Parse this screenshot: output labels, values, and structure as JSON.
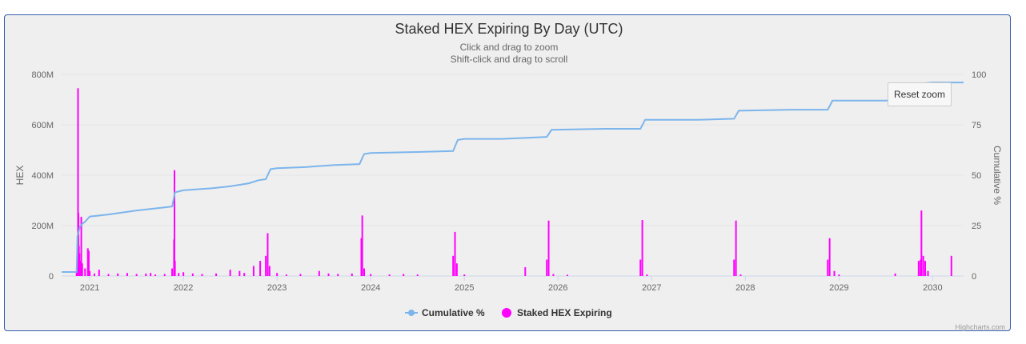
{
  "title": "Staked HEX Expiring By Day (UTC)",
  "subtitle_lines": [
    "Click and drag to zoom",
    "Shift-click and drag to scroll"
  ],
  "reset_zoom_label": "Reset zoom",
  "credits": "Highcharts.com",
  "colors": {
    "cumulative": "#7cb5ec",
    "staked": "#ff00ff",
    "border": "#335cad",
    "background": "#efefef"
  },
  "chart_data": {
    "type": "bar",
    "title": "Staked HEX Expiring By Day (UTC)",
    "xlabel": "",
    "x_ticks": [
      "2021",
      "2022",
      "2023",
      "2024",
      "2025",
      "2026",
      "2027",
      "2028",
      "2029",
      "2030"
    ],
    "xlim": [
      2020.7,
      2030.33
    ],
    "y_left": {
      "title": "HEX",
      "ticks": [
        "0",
        "200M",
        "400M",
        "600M",
        "800M"
      ],
      "ylim": [
        0,
        800000000
      ]
    },
    "y_right": {
      "title": "Cumulative %",
      "ticks": [
        "0",
        "25",
        "50",
        "75",
        "100"
      ],
      "ylim": [
        0,
        100
      ]
    },
    "grid": true,
    "legend": {
      "placement": "bottom-center",
      "entries": [
        "Cumulative %",
        "Staked HEX Expiring"
      ]
    },
    "series": [
      {
        "name": "Staked HEX Expiring",
        "axis": "left",
        "kind": "column",
        "points": [
          [
            2020.86,
            20000000
          ],
          [
            2020.87,
            160000000
          ],
          [
            2020.875,
            745000000
          ],
          [
            2020.88,
            250000000
          ],
          [
            2020.885,
            120000000
          ],
          [
            2020.89,
            90000000
          ],
          [
            2020.895,
            40000000
          ],
          [
            2020.9,
            60000000
          ],
          [
            2020.91,
            235000000
          ],
          [
            2020.92,
            50000000
          ],
          [
            2020.95,
            30000000
          ],
          [
            2020.98,
            110000000
          ],
          [
            2020.99,
            100000000
          ],
          [
            2021.0,
            20000000
          ],
          [
            2021.05,
            10000000
          ],
          [
            2021.1,
            25000000
          ],
          [
            2021.2,
            8000000
          ],
          [
            2021.3,
            10000000
          ],
          [
            2021.4,
            12000000
          ],
          [
            2021.5,
            8000000
          ],
          [
            2021.6,
            10000000
          ],
          [
            2021.65,
            12000000
          ],
          [
            2021.7,
            6000000
          ],
          [
            2021.8,
            8000000
          ],
          [
            2021.88,
            30000000
          ],
          [
            2021.9,
            145000000
          ],
          [
            2021.905,
            420000000
          ],
          [
            2021.91,
            60000000
          ],
          [
            2021.95,
            12000000
          ],
          [
            2022.0,
            15000000
          ],
          [
            2022.1,
            10000000
          ],
          [
            2022.2,
            8000000
          ],
          [
            2022.35,
            10000000
          ],
          [
            2022.5,
            25000000
          ],
          [
            2022.6,
            20000000
          ],
          [
            2022.65,
            12000000
          ],
          [
            2022.75,
            40000000
          ],
          [
            2022.82,
            60000000
          ],
          [
            2022.88,
            80000000
          ],
          [
            2022.9,
            170000000
          ],
          [
            2022.92,
            40000000
          ],
          [
            2023.0,
            12000000
          ],
          [
            2023.1,
            6000000
          ],
          [
            2023.25,
            8000000
          ],
          [
            2023.45,
            20000000
          ],
          [
            2023.55,
            10000000
          ],
          [
            2023.65,
            8000000
          ],
          [
            2023.8,
            10000000
          ],
          [
            2023.9,
            150000000
          ],
          [
            2023.91,
            240000000
          ],
          [
            2023.93,
            30000000
          ],
          [
            2024.0,
            8000000
          ],
          [
            2024.2,
            6000000
          ],
          [
            2024.35,
            8000000
          ],
          [
            2024.5,
            6000000
          ],
          [
            2024.88,
            80000000
          ],
          [
            2024.9,
            175000000
          ],
          [
            2024.92,
            50000000
          ],
          [
            2025.0,
            6000000
          ],
          [
            2025.65,
            35000000
          ],
          [
            2025.88,
            65000000
          ],
          [
            2025.9,
            220000000
          ],
          [
            2025.95,
            8000000
          ],
          [
            2026.1,
            5000000
          ],
          [
            2026.88,
            65000000
          ],
          [
            2026.9,
            222000000
          ],
          [
            2026.95,
            6000000
          ],
          [
            2027.88,
            65000000
          ],
          [
            2027.9,
            220000000
          ],
          [
            2027.95,
            6000000
          ],
          [
            2028.88,
            65000000
          ],
          [
            2028.9,
            150000000
          ],
          [
            2028.95,
            20000000
          ],
          [
            2029.0,
            6000000
          ],
          [
            2029.6,
            10000000
          ],
          [
            2029.85,
            60000000
          ],
          [
            2029.87,
            65000000
          ],
          [
            2029.88,
            260000000
          ],
          [
            2029.9,
            80000000
          ],
          [
            2029.92,
            60000000
          ],
          [
            2029.95,
            20000000
          ],
          [
            2030.2,
            80000000
          ]
        ]
      },
      {
        "name": "Cumulative %",
        "axis": "right",
        "kind": "line",
        "points": [
          [
            2020.7,
            2
          ],
          [
            2020.86,
            2
          ],
          [
            2020.87,
            20
          ],
          [
            2020.9,
            25
          ],
          [
            2020.95,
            27
          ],
          [
            2021.0,
            29.5
          ],
          [
            2021.2,
            30.5
          ],
          [
            2021.5,
            32.5
          ],
          [
            2021.8,
            34
          ],
          [
            2021.88,
            34.5
          ],
          [
            2021.91,
            41.5
          ],
          [
            2022.0,
            42.5
          ],
          [
            2022.3,
            43.5
          ],
          [
            2022.5,
            44.5
          ],
          [
            2022.7,
            46
          ],
          [
            2022.8,
            47.5
          ],
          [
            2022.88,
            48
          ],
          [
            2022.93,
            53
          ],
          [
            2023.0,
            53.5
          ],
          [
            2023.3,
            54
          ],
          [
            2023.6,
            55
          ],
          [
            2023.88,
            55.5
          ],
          [
            2023.93,
            60.5
          ],
          [
            2024.0,
            61
          ],
          [
            2024.5,
            61.5
          ],
          [
            2024.88,
            62
          ],
          [
            2024.93,
            67.5
          ],
          [
            2025.0,
            68
          ],
          [
            2025.4,
            68
          ],
          [
            2025.65,
            68.5
          ],
          [
            2025.88,
            69
          ],
          [
            2025.93,
            72.5
          ],
          [
            2026.5,
            73
          ],
          [
            2026.88,
            73
          ],
          [
            2026.93,
            77.5
          ],
          [
            2027.5,
            77.5
          ],
          [
            2027.88,
            78
          ],
          [
            2027.93,
            82
          ],
          [
            2028.5,
            82.5
          ],
          [
            2028.88,
            82.5
          ],
          [
            2028.93,
            87
          ],
          [
            2029.5,
            87
          ],
          [
            2029.85,
            87.5
          ],
          [
            2029.88,
            95.5
          ],
          [
            2030.0,
            96
          ],
          [
            2030.33,
            96
          ]
        ]
      }
    ]
  }
}
